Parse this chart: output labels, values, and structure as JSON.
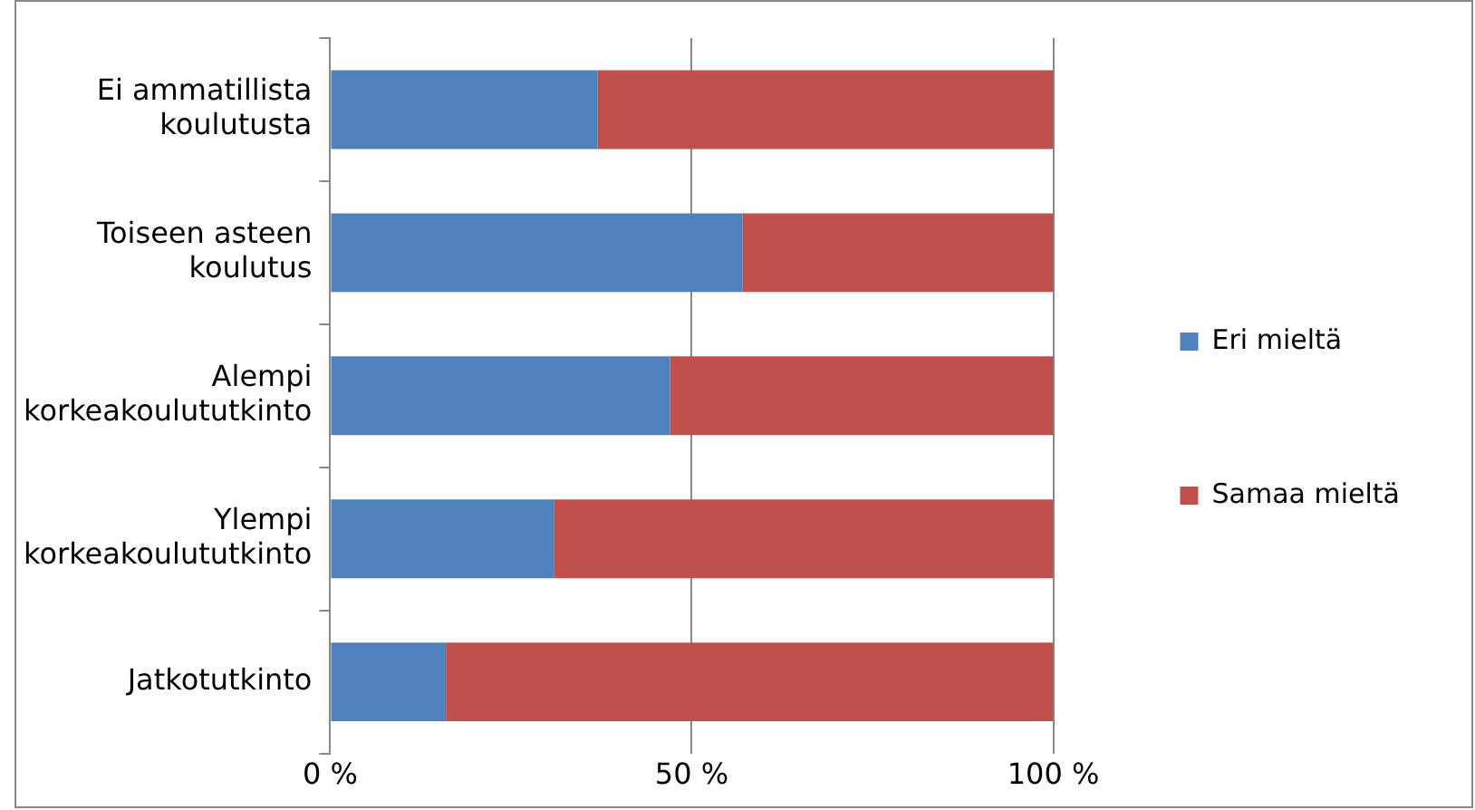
{
  "chart_data": {
    "type": "bar",
    "orientation": "horizontal",
    "stacked": true,
    "categories": [
      "Ei ammatillista koulutusta",
      "Toiseen asteen koulutus",
      "Alempi korkeakoulututkinto",
      "Ylempi korkeakoulututkinto",
      "Jatkotutkinto"
    ],
    "series": [
      {
        "name": "Eri mieltä",
        "color": "#4f81bd",
        "values": [
          37,
          57,
          47,
          31,
          16
        ]
      },
      {
        "name": "Samaa mieltä",
        "color": "#c0504d",
        "values": [
          63,
          43,
          53,
          69,
          84
        ]
      }
    ],
    "xlim": [
      0,
      100
    ],
    "xticks": [
      {
        "value": 0,
        "label": "0 %"
      },
      {
        "value": 50,
        "label": "50 %"
      },
      {
        "value": 100,
        "label": "100 %"
      }
    ],
    "grid": "x",
    "legend": "right"
  }
}
